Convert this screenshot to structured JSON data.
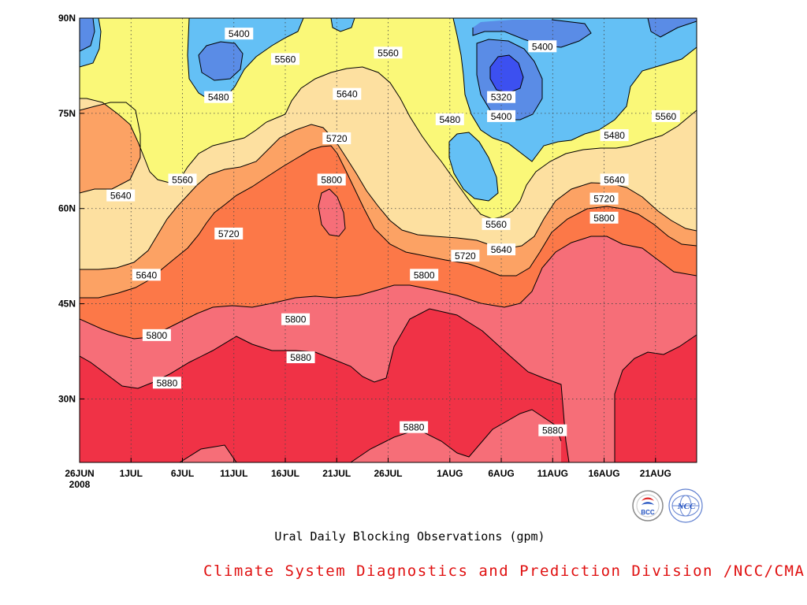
{
  "chart_data": {
    "type": "contour",
    "xlabel": "",
    "ylabel": "",
    "x_ticks": [
      "26JUN",
      "1JUL",
      "6JUL",
      "11JUL",
      "16JUL",
      "21JUL",
      "26JUL",
      "1AUG",
      "6AUG",
      "11AUG",
      "16AUG",
      "21AUG"
    ],
    "x_tick_days": [
      0,
      5,
      10,
      15,
      20,
      25,
      30,
      36,
      41,
      46,
      51,
      56
    ],
    "x_range_days": [
      0,
      60
    ],
    "year_label": "2008",
    "y_ticks": [
      "30N",
      "45N",
      "60N",
      "75N",
      "90N"
    ],
    "y_tick_values": [
      30,
      45,
      60,
      75,
      90
    ],
    "ylim": [
      20,
      90
    ],
    "grid": true,
    "levels": [
      5320,
      5400,
      5480,
      5560,
      5640,
      5720,
      5800,
      5880
    ],
    "band_colors": [
      "#3c50f0",
      "#5a8ce6",
      "#64c0f5",
      "#faf878",
      "#fde0a0",
      "#fca264",
      "#fc7848",
      "#f66e78",
      "#f03246"
    ],
    "contour_labels": [
      {
        "value": "5400",
        "day": 15.5,
        "lat": 87.5
      },
      {
        "value": "5560",
        "day": 20.0,
        "lat": 83.5
      },
      {
        "value": "5560",
        "day": 30.0,
        "lat": 84.5
      },
      {
        "value": "5400",
        "day": 45.0,
        "lat": 85.5
      },
      {
        "value": "5480",
        "day": 13.5,
        "lat": 77.5
      },
      {
        "value": "5640",
        "day": 26.0,
        "lat": 78.0
      },
      {
        "value": "5320",
        "day": 41.0,
        "lat": 77.5
      },
      {
        "value": "5400",
        "day": 41.0,
        "lat": 74.5
      },
      {
        "value": "5480",
        "day": 36.0,
        "lat": 74.0
      },
      {
        "value": "5560",
        "day": 57.0,
        "lat": 74.5
      },
      {
        "value": "5480",
        "day": 52.0,
        "lat": 71.5
      },
      {
        "value": "5720",
        "day": 25.0,
        "lat": 71.0
      },
      {
        "value": "5560",
        "day": 10.0,
        "lat": 64.5
      },
      {
        "value": "5800",
        "day": 24.5,
        "lat": 64.5
      },
      {
        "value": "5640",
        "day": 4.0,
        "lat": 62.0
      },
      {
        "value": "5640",
        "day": 52.0,
        "lat": 64.5
      },
      {
        "value": "5720",
        "day": 51.0,
        "lat": 61.5
      },
      {
        "value": "5560",
        "day": 40.5,
        "lat": 57.5
      },
      {
        "value": "5800",
        "day": 51.0,
        "lat": 58.5
      },
      {
        "value": "5720",
        "day": 14.5,
        "lat": 56.0
      },
      {
        "value": "5640",
        "day": 41.0,
        "lat": 53.5
      },
      {
        "value": "5720",
        "day": 37.5,
        "lat": 52.5
      },
      {
        "value": "5640",
        "day": 6.5,
        "lat": 49.5
      },
      {
        "value": "5800",
        "day": 33.5,
        "lat": 49.5
      },
      {
        "value": "5800",
        "day": 21.0,
        "lat": 42.5
      },
      {
        "value": "5800",
        "day": 7.5,
        "lat": 40.0
      },
      {
        "value": "5880",
        "day": 21.5,
        "lat": 36.5
      },
      {
        "value": "5880",
        "day": 8.5,
        "lat": 32.5
      },
      {
        "value": "5880",
        "day": 32.5,
        "lat": 25.5
      },
      {
        "value": "5880",
        "day": 46.0,
        "lat": 25.0
      }
    ]
  },
  "caption": "Ural Daily Blocking Observations (gpm)",
  "credit": "Climate System Diagnostics and Prediction Division /NCC/CMA",
  "logos": [
    {
      "name": "bcc-logo",
      "text": "BCC",
      "color": "#2050c0"
    },
    {
      "name": "ncc-logo",
      "text": "NCC",
      "color": "#2050c0"
    }
  ]
}
